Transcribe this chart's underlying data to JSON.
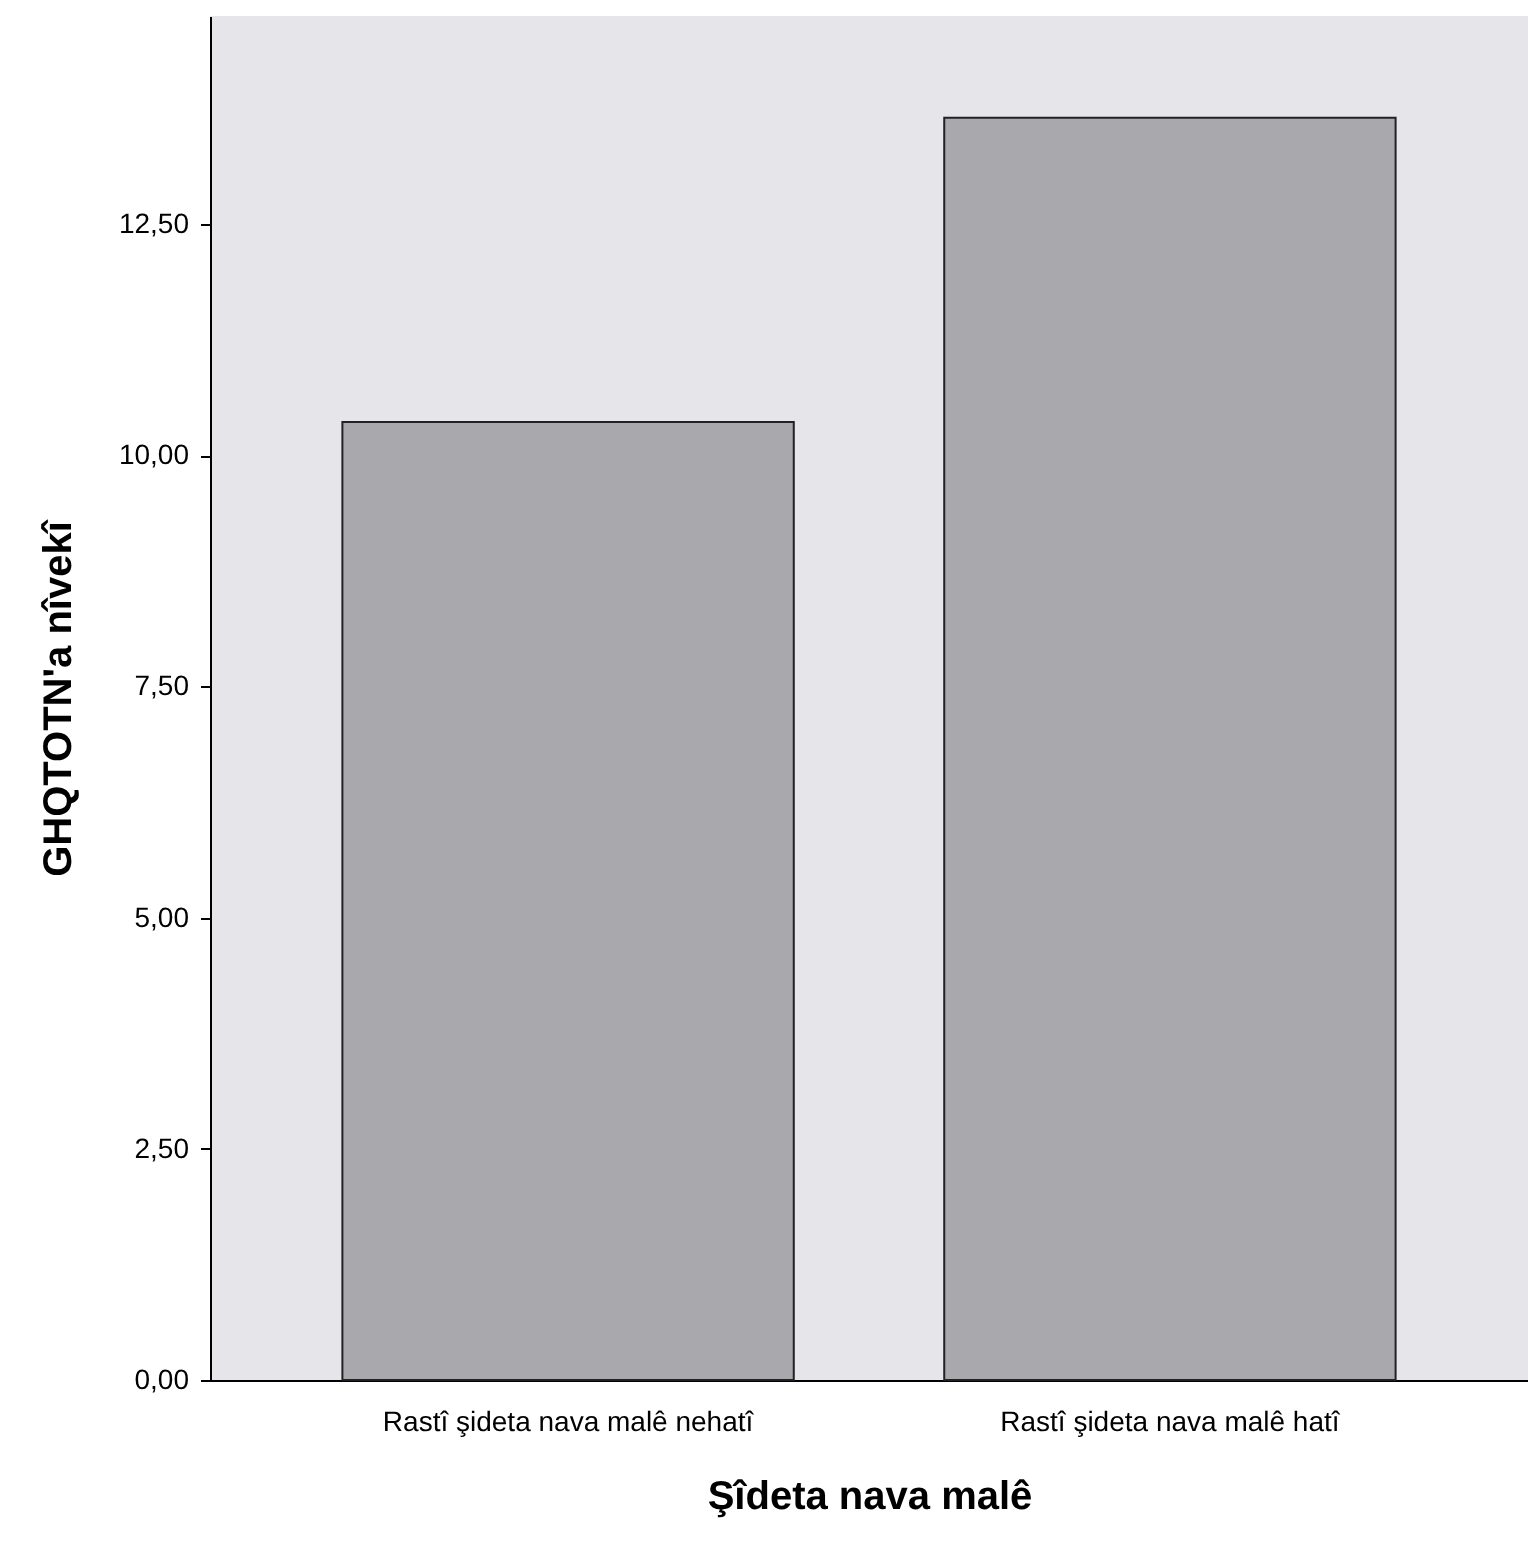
{
  "chart_data": {
    "type": "bar",
    "xlabel": "Şîdeta nava malê",
    "ylabel": "GHQTOTN'a nîvekî",
    "categories": [
      "Rastî şideta nava malê nehatî",
      "Rastî şideta nava malê hatî"
    ],
    "values": [
      10.36,
      13.65
    ],
    "color": "#a8a8ad",
    "ylim": [
      0,
      14.75
    ],
    "yticks": [
      {
        "value": 0,
        "label": "0,00"
      },
      {
        "value": 2.5,
        "label": "2,50"
      },
      {
        "value": 5,
        "label": "5,00"
      },
      {
        "value": 7.5,
        "label": "7,50"
      },
      {
        "value": 10,
        "label": "10,00"
      },
      {
        "value": 12.5,
        "label": "12,50"
      }
    ],
    "grid": false
  }
}
